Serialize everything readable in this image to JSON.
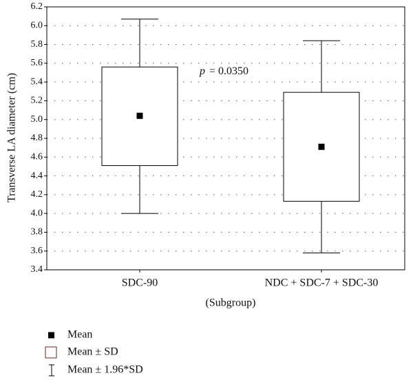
{
  "chart_data": {
    "type": "box",
    "y_label": "Transverse LA diameter (cm)",
    "x_label": "(Subgroup)",
    "categories": [
      "SDC-90",
      "NDC + SDC-7 + SDC-30"
    ],
    "mean": [
      5.04,
      4.71
    ],
    "sd_low": [
      4.51,
      4.13
    ],
    "sd_high": [
      5.56,
      5.29
    ],
    "ci_low": [
      4.0,
      3.58
    ],
    "ci_high": [
      6.07,
      5.84
    ],
    "annotation_symbol": "p",
    "annotation_text": "= 0.0350",
    "legend": [
      "Mean",
      "Mean ± SD",
      "Mean ± 1.96*SD"
    ],
    "box_color": "#000000",
    "legend_box_color": "#7a1f1f",
    "ylim": [
      3.4,
      6.2
    ],
    "yticks": [
      {
        "value": 3.4,
        "label": "3.4"
      },
      {
        "value": 3.6,
        "label": "3.6"
      },
      {
        "value": 3.8,
        "label": "3.8"
      },
      {
        "value": 4.0,
        "label": "4.0"
      },
      {
        "value": 4.2,
        "label": "4.2"
      },
      {
        "value": 4.4,
        "label": "4.4"
      },
      {
        "value": 4.6,
        "label": "4.6"
      },
      {
        "value": 4.8,
        "label": "4.8"
      },
      {
        "value": 5.0,
        "label": "5.0"
      },
      {
        "value": 5.2,
        "label": "5.2"
      },
      {
        "value": 5.4,
        "label": "5.4"
      },
      {
        "value": 5.6,
        "label": "5.6"
      },
      {
        "value": 5.8,
        "label": "5.8"
      },
      {
        "value": 6.0,
        "label": "6.0"
      },
      {
        "value": 6.2,
        "label": "6.2"
      }
    ],
    "grid": true
  }
}
